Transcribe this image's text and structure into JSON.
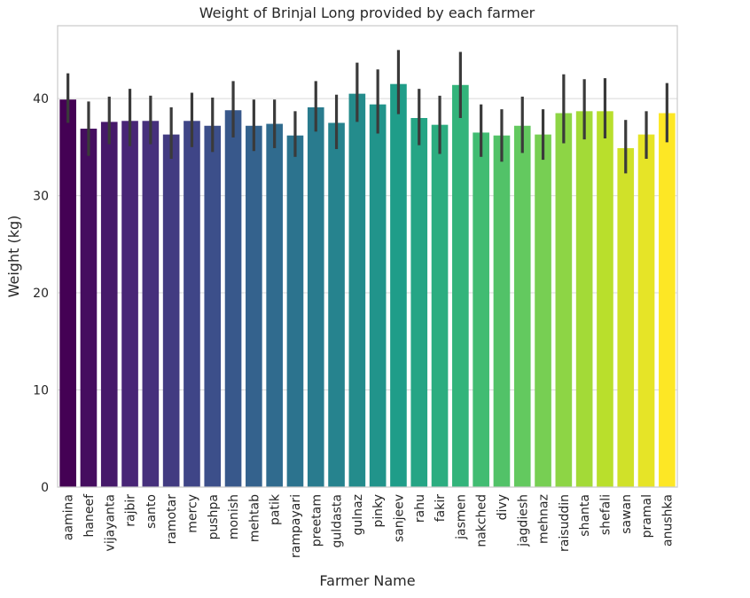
{
  "chart_data": {
    "type": "bar",
    "title": "Weight of Brinjal Long provided by each farmer",
    "xlabel": "Farmer Name",
    "ylabel": "Weight (kg)",
    "ylim": [
      0,
      47.5
    ],
    "yticks": [
      0,
      10,
      20,
      30,
      40
    ],
    "grid": true,
    "palette": "viridis",
    "error_bar_color": "#3a3a3a",
    "categories": [
      "aamina",
      "haneef",
      "vijayanta",
      "rajbir",
      "santo",
      "ramotar",
      "mercy",
      "pushpa",
      "monish",
      "mehtab",
      "patik",
      "rampayari",
      "preetam",
      "guldasta",
      "gulnaz",
      "pinky",
      "sanjeev",
      "rahu",
      "fakir",
      "jasmen",
      "nakched",
      "divy",
      "jagdiesh",
      "mehnaz",
      "raisuddin",
      "shanta",
      "shefali",
      "sawan",
      "pramal",
      "anushka"
    ],
    "values": [
      39.9,
      36.9,
      37.6,
      37.7,
      37.7,
      36.3,
      37.7,
      37.2,
      38.8,
      37.2,
      37.4,
      36.2,
      39.1,
      37.5,
      40.5,
      39.4,
      41.5,
      38.0,
      37.3,
      41.4,
      36.5,
      36.2,
      37.2,
      36.3,
      38.5,
      38.7,
      38.7,
      34.9,
      36.3,
      38.5
    ],
    "ci_low": [
      37.5,
      34.1,
      35.3,
      35.1,
      35.3,
      33.8,
      35.0,
      34.5,
      36.0,
      34.6,
      34.9,
      34.0,
      36.6,
      34.8,
      37.6,
      36.4,
      38.4,
      35.2,
      34.3,
      38.0,
      34.0,
      33.5,
      34.4,
      33.7,
      35.4,
      35.8,
      35.9,
      32.3,
      33.8,
      35.5
    ],
    "ci_high": [
      42.6,
      39.7,
      40.2,
      41.0,
      40.3,
      39.1,
      40.6,
      40.1,
      41.8,
      39.9,
      39.9,
      38.7,
      41.8,
      40.4,
      43.7,
      43.0,
      45.0,
      41.0,
      40.3,
      44.8,
      39.4,
      38.9,
      40.2,
      38.9,
      42.5,
      42.0,
      42.1,
      37.8,
      38.7,
      41.6
    ]
  }
}
